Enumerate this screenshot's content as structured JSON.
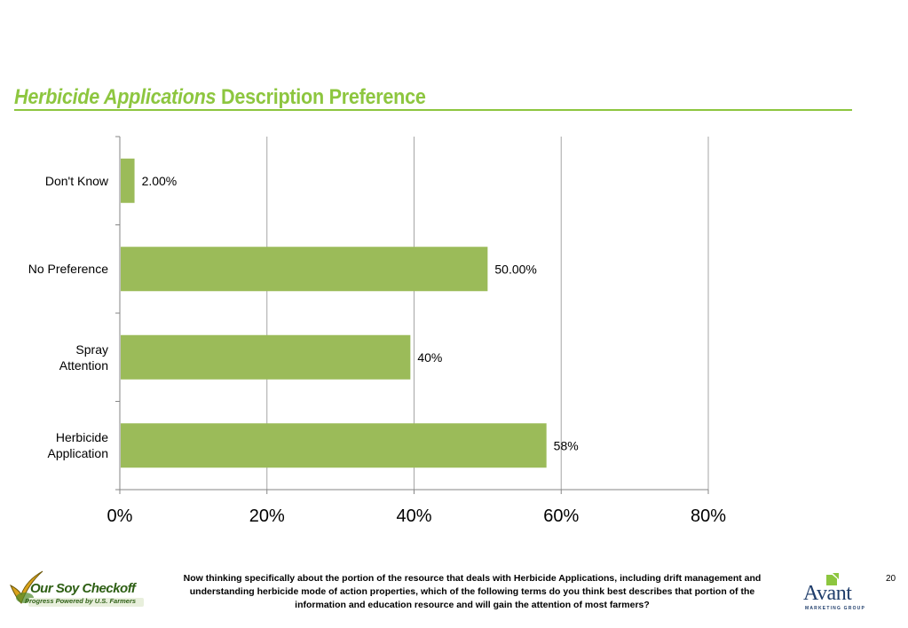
{
  "slide": {
    "title_italic": "Herbicide Applications",
    "title_rest": " Description Preference",
    "footer_text": "Now thinking specifically about the portion of the resource that deals with Herbicide Applications, including drift management and understanding herbicide mode of action properties, which of the following terms do you think best describes that portion of the information and education resource and will gain the attention of most farmers?",
    "page_number": "20",
    "logo_left": {
      "name": "Our Soy Checkoff",
      "tagline": "Progress Powered by U.S. Farmers"
    },
    "logo_right": {
      "name": "Avant",
      "tagline": "MARKETING GROUP"
    }
  },
  "chart_data": {
    "type": "bar",
    "orientation": "horizontal",
    "categories": [
      "Don't Know",
      "No Preference",
      "Spray Attention",
      "Herbicide Application"
    ],
    "category_lines": [
      [
        "Don't Know"
      ],
      [
        "No Preference"
      ],
      [
        "Spray",
        "Attention"
      ],
      [
        "Herbicide",
        "Application"
      ]
    ],
    "values": [
      2,
      50,
      39.5,
      58
    ],
    "value_labels": [
      "2.00%",
      "50.00%",
      "40%",
      "58%"
    ],
    "xlim": [
      0,
      80
    ],
    "xticks": [
      0,
      20,
      40,
      60,
      80
    ],
    "xtick_labels": [
      "0%",
      "20%",
      "40%",
      "60%",
      "80%"
    ],
    "grid": true,
    "bar_color": "#9bbb59",
    "grid_color": "#a6a6a6"
  }
}
